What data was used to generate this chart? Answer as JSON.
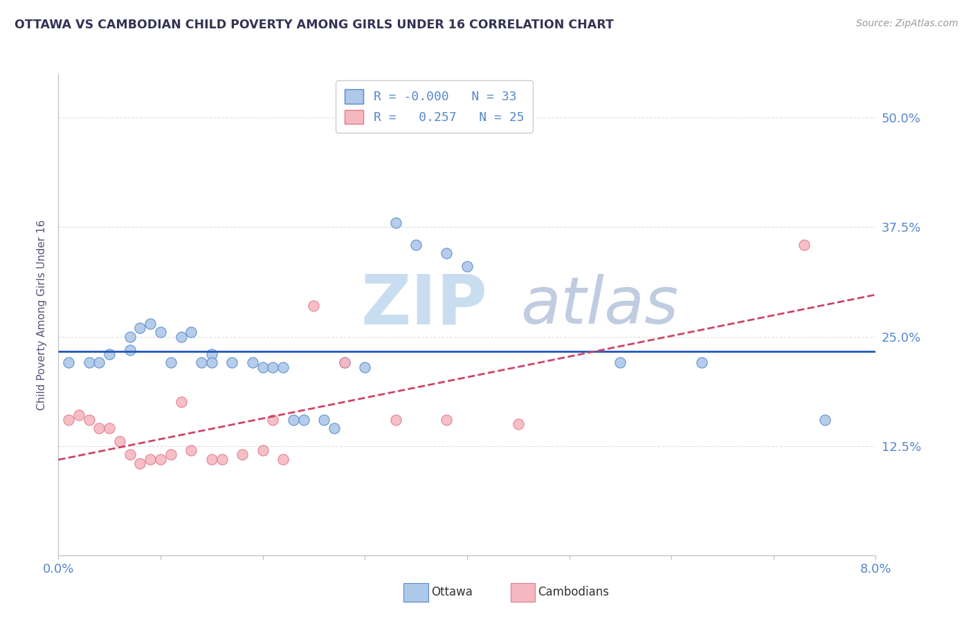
{
  "title": "OTTAWA VS CAMBODIAN CHILD POVERTY AMONG GIRLS UNDER 16 CORRELATION CHART",
  "source": "Source: ZipAtlas.com",
  "ylabel": "Child Poverty Among Girls Under 16",
  "yticks": [
    0.125,
    0.25,
    0.375,
    0.5
  ],
  "ytick_labels": [
    "12.5%",
    "25.0%",
    "37.5%",
    "50.0%"
  ],
  "xticks": [
    0.0,
    0.01,
    0.02,
    0.03,
    0.04,
    0.05,
    0.06,
    0.07,
    0.08
  ],
  "xtick_labels": [
    "0.0%",
    "",
    "",
    "",
    "",
    "",
    "",
    "",
    "8.0%"
  ],
  "ottawa_color": "#adc8e8",
  "cambodian_color": "#f5b8c0",
  "ottawa_edge_color": "#5588cc",
  "cambodian_edge_color": "#e07888",
  "ottawa_line_color": "#2255bb",
  "cambodian_line_color": "#cc4466",
  "background_color": "#ffffff",
  "title_color": "#333355",
  "source_color": "#999999",
  "axis_label_color": "#555577",
  "tick_label_color": "#5588cc",
  "grid_color": "#dddddd",
  "watermark_zip_color": "#c8ddf0",
  "watermark_atlas_color": "#c0cce0",
  "legend_box_color": "#eeeeee",
  "xmin": 0.0,
  "xmax": 0.08,
  "ymin": 0.0,
  "ymax": 0.55,
  "ottawa_points": [
    [
      0.001,
      0.22
    ],
    [
      0.003,
      0.22
    ],
    [
      0.004,
      0.22
    ],
    [
      0.005,
      0.23
    ],
    [
      0.007,
      0.235
    ],
    [
      0.007,
      0.25
    ],
    [
      0.008,
      0.26
    ],
    [
      0.009,
      0.265
    ],
    [
      0.01,
      0.255
    ],
    [
      0.011,
      0.22
    ],
    [
      0.012,
      0.25
    ],
    [
      0.013,
      0.255
    ],
    [
      0.014,
      0.22
    ],
    [
      0.015,
      0.23
    ],
    [
      0.015,
      0.22
    ],
    [
      0.017,
      0.22
    ],
    [
      0.019,
      0.22
    ],
    [
      0.02,
      0.215
    ],
    [
      0.021,
      0.215
    ],
    [
      0.022,
      0.215
    ],
    [
      0.023,
      0.155
    ],
    [
      0.024,
      0.155
    ],
    [
      0.026,
      0.155
    ],
    [
      0.027,
      0.145
    ],
    [
      0.028,
      0.22
    ],
    [
      0.03,
      0.215
    ],
    [
      0.033,
      0.38
    ],
    [
      0.035,
      0.355
    ],
    [
      0.038,
      0.345
    ],
    [
      0.04,
      0.33
    ],
    [
      0.055,
      0.22
    ],
    [
      0.063,
      0.22
    ],
    [
      0.075,
      0.155
    ]
  ],
  "cambodian_points": [
    [
      0.001,
      0.155
    ],
    [
      0.002,
      0.16
    ],
    [
      0.003,
      0.155
    ],
    [
      0.004,
      0.145
    ],
    [
      0.005,
      0.145
    ],
    [
      0.006,
      0.13
    ],
    [
      0.007,
      0.115
    ],
    [
      0.008,
      0.105
    ],
    [
      0.009,
      0.11
    ],
    [
      0.01,
      0.11
    ],
    [
      0.011,
      0.115
    ],
    [
      0.012,
      0.175
    ],
    [
      0.013,
      0.12
    ],
    [
      0.015,
      0.11
    ],
    [
      0.016,
      0.11
    ],
    [
      0.018,
      0.115
    ],
    [
      0.02,
      0.12
    ],
    [
      0.021,
      0.155
    ],
    [
      0.022,
      0.11
    ],
    [
      0.025,
      0.285
    ],
    [
      0.028,
      0.22
    ],
    [
      0.033,
      0.155
    ],
    [
      0.038,
      0.155
    ],
    [
      0.045,
      0.15
    ],
    [
      0.073,
      0.355
    ]
  ]
}
